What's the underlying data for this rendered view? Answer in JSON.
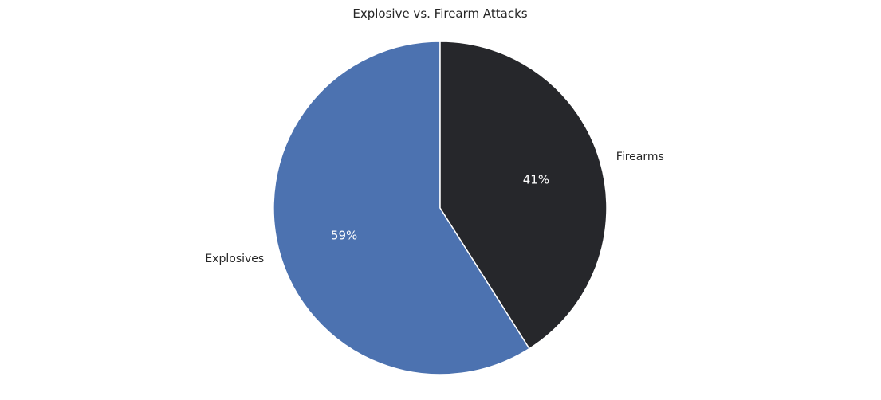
{
  "chart_data": {
    "type": "pie",
    "title": "Explosive vs. Firearm Attacks",
    "labels": [
      "Explosives",
      "Firearms"
    ],
    "values": [
      59,
      41
    ],
    "autopct": [
      "59%",
      "41%"
    ],
    "colors": [
      "#4c72b0",
      "#26272b"
    ],
    "start_angle_deg": 90,
    "direction": "counterclockwise",
    "edge_color": "#ffffff"
  }
}
